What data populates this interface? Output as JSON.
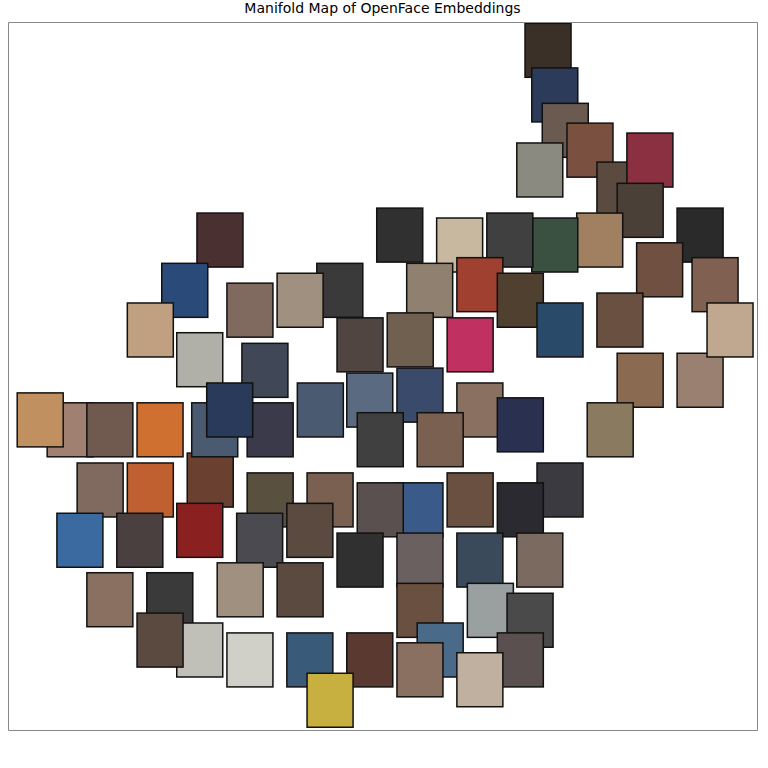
{
  "chart_data": {
    "type": "scatter",
    "title": "Manifold Map of OpenFace Embeddings",
    "marker": "square",
    "tick_labels": false,
    "xlim": [
      0,
      100
    ],
    "ylim": [
      0,
      100
    ],
    "xticks": [],
    "yticks": [],
    "x": [
      72.1,
      73.0,
      74.4,
      71.0,
      77.7,
      81.7,
      85.7,
      84.4,
      92.4,
      94.4,
      87.0,
      79.0,
      73.0,
      67.0,
      60.3,
      52.3,
      56.3,
      63.0,
      68.4,
      73.7,
      61.7,
      53.7,
      47.0,
      44.3,
      39.0,
      32.3,
      28.3,
      23.6,
      19.0,
      25.6,
      34.3,
      41.7,
      48.3,
      55.0,
      63.0,
      68.4,
      81.7,
      84.4,
      92.4,
      80.4,
      96.4,
      73.7,
      68.4,
      61.7,
      55.0,
      49.7,
      43.0,
      35.0,
      27.0,
      19.0,
      12.3,
      8.3,
      4.3,
      13.6,
      20.3,
      27.6,
      35.0,
      9.6,
      17.6,
      25.6,
      33.6,
      40.3,
      47.0,
      55.0,
      63.0,
      71.0,
      13.6,
      21.6,
      31.0,
      39.0,
      55.0,
      64.4,
      69.7,
      25.6,
      32.3,
      40.3,
      48.3,
      57.7,
      68.4,
      63.0,
      55.0,
      43.0,
      20.3,
      49.7,
      57.7,
      29.6
    ],
    "values": [
      96.0,
      89.7,
      84.7,
      79.1,
      81.9,
      76.4,
      80.5,
      73.4,
      69.9,
      62.9,
      65.0,
      69.2,
      68.5,
      69.2,
      68.5,
      69.9,
      62.1,
      62.9,
      60.7,
      56.5,
      54.4,
      55.1,
      54.4,
      62.1,
      60.7,
      59.3,
      69.2,
      62.1,
      56.5,
      52.3,
      50.8,
      45.2,
      46.6,
      47.3,
      45.2,
      43.1,
      57.9,
      49.4,
      49.4,
      42.4,
      56.5,
      33.9,
      31.1,
      32.5,
      31.1,
      31.1,
      32.5,
      32.5,
      35.3,
      33.9,
      33.9,
      42.4,
      43.8,
      42.4,
      42.4,
      42.4,
      42.4,
      26.8,
      26.8,
      28.2,
      26.8,
      28.2,
      24.0,
      24.0,
      24.0,
      24.0,
      18.4,
      18.4,
      19.8,
      19.8,
      16.9,
      16.9,
      15.5,
      11.3,
      9.9,
      9.9,
      9.9,
      11.3,
      9.9,
      7.1,
      8.5,
      4.2,
      12.7,
      41.0,
      41.0,
      45.2
    ],
    "colors": [
      "#3a3028",
      "#2d3b5a",
      "#6a5a50",
      "#8a8a80",
      "#7a5040",
      "#5a4a40",
      "#8a3040",
      "#4a4038",
      "#2a2a2a",
      "#806050",
      "#705040",
      "#a08060",
      "#3a5040",
      "#404040",
      "#c8b8a0",
      "#303030",
      "#908070",
      "#a04030",
      "#504030",
      "#2a4a6a",
      "#c03060",
      "#706050",
      "#504540",
      "#3a3a3a",
      "#a09080",
      "#806a60",
      "#4a3030",
      "#2a4a7a",
      "#c0a080",
      "#b0b0a8",
      "#404858",
      "#4a5a70",
      "#5a6a80",
      "#3a4a6a",
      "#8a7060",
      "#2a3050",
      "#6a5040",
      "#8a6a50",
      "#9a8070",
      "#8a7a60",
      "#c0a890",
      "#3a3a40",
      "#2a2a30",
      "#6a5040",
      "#3a5a8a",
      "#5a5050",
      "#7a6050",
      "#5a5040",
      "#6a4030",
      "#c06030",
      "#806a60",
      "#a08070",
      "#c09060",
      "#705a50",
      "#d07030",
      "#4a5a70",
      "#3a3a4a",
      "#3a6aa0",
      "#4a4040",
      "#8a2020",
      "#4a4a50",
      "#5a4a40",
      "#303030",
      "#6a6060",
      "#3a4a5a",
      "#7a6a60",
      "#8a7060",
      "#3a3a3a",
      "#a09080",
      "#5a4a40",
      "#6a5040",
      "#9aa0a0",
      "#4a4a4a",
      "#c0c0b8",
      "#d0d0c8",
      "#3a5a7a",
      "#5a3a30",
      "#4a6a8a",
      "#5a5050",
      "#c0b0a0",
      "#8a7060",
      "#c8b040",
      "#5a4a40",
      "#404040",
      "#7a6050",
      "#2a3a5a"
    ]
  }
}
